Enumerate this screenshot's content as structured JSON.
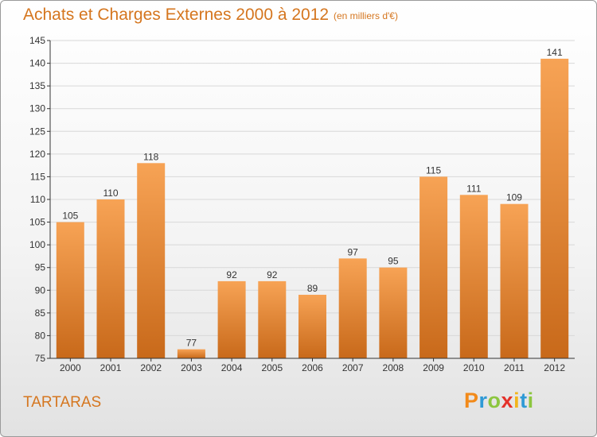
{
  "header": {
    "title": "Achats et Charges Externes 2000 à 2012",
    "unit": "(en milliers d'€)"
  },
  "footer": {
    "commune": "TARTARAS",
    "logo_text": "Proxiti",
    "logo_colors": [
      "#f28a1a",
      "#2f9ad6",
      "#8cc63f",
      "#e4322b",
      "#f2b51c",
      "#2f9ad6",
      "#8cc63f"
    ]
  },
  "colors": {
    "bar_top": "#f7a355",
    "bar_bottom": "#c8691a",
    "text": "#d5761f",
    "axis": "#333333",
    "grid": "#d8d8d8"
  },
  "chart_data": {
    "type": "bar",
    "categories": [
      "2000",
      "2001",
      "2002",
      "2003",
      "2004",
      "2005",
      "2006",
      "2007",
      "2008",
      "2009",
      "2010",
      "2011",
      "2012"
    ],
    "values": [
      105,
      110,
      118,
      77,
      92,
      92,
      89,
      97,
      95,
      115,
      111,
      109,
      141
    ],
    "title": "Achats et Charges Externes 2000 à 2012",
    "ylim": [
      75,
      145
    ],
    "yticks": [
      75,
      80,
      85,
      90,
      95,
      100,
      105,
      110,
      115,
      120,
      125,
      130,
      135,
      140,
      145
    ],
    "grid": true,
    "data_labels": true
  }
}
